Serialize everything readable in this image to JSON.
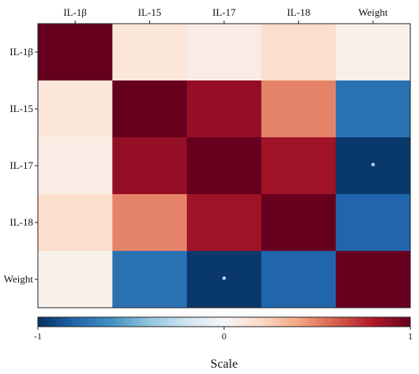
{
  "chart_data": {
    "type": "heatmap",
    "rows": [
      "IL-1β",
      "IL-15",
      "IL-17",
      "IL-18",
      "Weight"
    ],
    "columns": [
      "IL-1β",
      "IL-15",
      "IL-17",
      "IL-18",
      "Weight"
    ],
    "values": [
      [
        1.0,
        0.12,
        0.08,
        0.18,
        0.05
      ],
      [
        0.12,
        1.0,
        0.88,
        0.5,
        -0.75
      ],
      [
        0.08,
        0.88,
        1.0,
        0.85,
        -0.97
      ],
      [
        0.18,
        0.5,
        0.85,
        1.0,
        -0.8
      ],
      [
        0.05,
        -0.75,
        -0.97,
        -0.8,
        1.0
      ]
    ],
    "annotations": [
      {
        "row": 2,
        "col": 4,
        "text": "*"
      },
      {
        "row": 4,
        "col": 2,
        "text": "*"
      }
    ],
    "colorbar": {
      "min": -1,
      "max": 1,
      "tick_labels": [
        "-1",
        "0",
        "1"
      ],
      "title": "Scale",
      "orientation": "horizontal",
      "placement": "bottom"
    },
    "colormap": [
      "#053061",
      "#2166ac",
      "#4393c3",
      "#92c5de",
      "#d1e5f0",
      "#f7f7f7",
      "#fddbc7",
      "#f4a582",
      "#d6604d",
      "#b2182b",
      "#67001f"
    ],
    "column_labels_position": "top",
    "grid": false
  }
}
